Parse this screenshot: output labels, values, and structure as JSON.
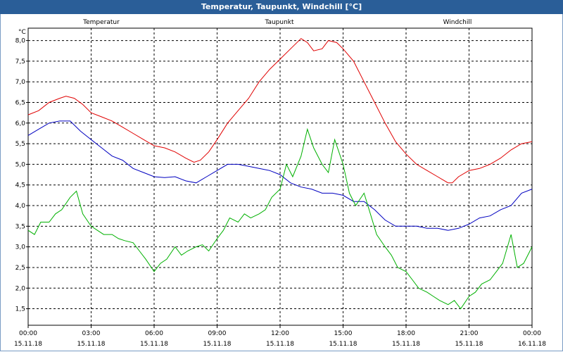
{
  "window": {
    "title": "Temperatur, Taupunkt, Windchill [°C]"
  },
  "chart_data": {
    "type": "line",
    "title": "Temperatur, Taupunkt, Windchill [°C]",
    "ylabel": "°C",
    "ylim": [
      1.1,
      8.3
    ],
    "yticks": [
      1.5,
      2.0,
      2.5,
      3.0,
      3.5,
      4.0,
      4.5,
      5.0,
      5.5,
      6.0,
      6.5,
      7.0,
      7.5,
      8.0
    ],
    "ytick_labels": [
      "1,5",
      "2,0",
      "2,5",
      "3,0",
      "3,5",
      "4,0",
      "4,5",
      "5,0",
      "5,5",
      "6,0",
      "6,5",
      "7,0",
      "7,5",
      "8,0"
    ],
    "xlim": [
      0,
      24
    ],
    "xticks": [
      0,
      3,
      6,
      9,
      12,
      15,
      18,
      21,
      24
    ],
    "xtick_time_labels": [
      "00:00",
      "03:00",
      "06:00",
      "09:00",
      "12:00",
      "15:00",
      "18:00",
      "21:00",
      "00:00"
    ],
    "xtick_date_labels": [
      "15.11.18",
      "15.11.18",
      "15.11.18",
      "15.11.18",
      "15.11.18",
      "15.11.18",
      "15.11.18",
      "15.11.18",
      "16.11.18"
    ],
    "grid": true,
    "legend": "top",
    "series": [
      {
        "name": "Temperatur",
        "color": "#e00000",
        "x": [
          0,
          0.5,
          1,
          1.5,
          1.8,
          2.2,
          2.6,
          3,
          3.5,
          4,
          4.5,
          5,
          5.5,
          6,
          6.5,
          7,
          7.5,
          7.9,
          8.2,
          8.6,
          9,
          9.5,
          10,
          10.5,
          11,
          11.5,
          12,
          12.5,
          13,
          13.3,
          13.6,
          14,
          14.3,
          14.7,
          15,
          15.5,
          16,
          16.5,
          17,
          17.5,
          18,
          18.5,
          19,
          19.5,
          20,
          20.2,
          20.5,
          21,
          21.5,
          22,
          22.5,
          23,
          23.5,
          24
        ],
        "y": [
          6.2,
          6.3,
          6.5,
          6.6,
          6.65,
          6.6,
          6.45,
          6.25,
          6.15,
          6.05,
          5.9,
          5.75,
          5.6,
          5.45,
          5.4,
          5.3,
          5.15,
          5.05,
          5.1,
          5.3,
          5.6,
          6.0,
          6.3,
          6.6,
          7.0,
          7.3,
          7.55,
          7.8,
          8.05,
          7.95,
          7.75,
          7.8,
          8.0,
          7.95,
          7.8,
          7.5,
          7.0,
          6.5,
          6.0,
          5.55,
          5.25,
          5.0,
          4.85,
          4.7,
          4.55,
          4.55,
          4.7,
          4.85,
          4.9,
          5.0,
          5.15,
          5.35,
          5.5,
          5.55
        ]
      },
      {
        "name": "Taupunkt",
        "color": "#0000c0",
        "x": [
          0,
          0.5,
          1,
          1.5,
          2,
          2.5,
          3,
          3.5,
          4,
          4.5,
          5,
          5.5,
          6,
          6.5,
          7,
          7.5,
          8,
          8.5,
          9,
          9.5,
          10,
          10.5,
          11,
          11.5,
          12,
          12.5,
          13,
          13.5,
          14,
          14.5,
          15,
          15.5,
          16,
          16.5,
          17,
          17.5,
          18,
          18.5,
          19,
          19.5,
          20,
          20.5,
          21,
          21.5,
          22,
          22.5,
          23,
          23.5,
          24
        ],
        "y": [
          5.7,
          5.85,
          6.0,
          6.05,
          6.05,
          5.8,
          5.6,
          5.4,
          5.2,
          5.1,
          4.9,
          4.8,
          4.7,
          4.68,
          4.7,
          4.6,
          4.55,
          4.7,
          4.85,
          5.0,
          5.0,
          4.95,
          4.9,
          4.85,
          4.75,
          4.55,
          4.45,
          4.4,
          4.3,
          4.3,
          4.25,
          4.1,
          4.1,
          3.9,
          3.65,
          3.5,
          3.5,
          3.5,
          3.45,
          3.45,
          3.4,
          3.45,
          3.55,
          3.7,
          3.75,
          3.9,
          4.0,
          4.3,
          4.4
        ]
      },
      {
        "name": "Windchill",
        "color": "#00b000",
        "x": [
          0,
          0.3,
          0.6,
          1,
          1.3,
          1.6,
          2,
          2.3,
          2.6,
          3,
          3.3,
          3.6,
          4,
          4.3,
          4.6,
          5,
          5.3,
          5.6,
          6,
          6.3,
          6.6,
          7,
          7.3,
          7.6,
          8,
          8.3,
          8.6,
          9,
          9.3,
          9.6,
          10,
          10.3,
          10.6,
          11,
          11.3,
          11.6,
          12,
          12.3,
          12.6,
          13,
          13.3,
          13.6,
          14,
          14.3,
          14.6,
          15,
          15.3,
          15.6,
          16,
          16.3,
          16.6,
          17,
          17.3,
          17.6,
          18,
          18.3,
          18.6,
          19,
          19.3,
          19.6,
          20,
          20.3,
          20.6,
          21,
          21.3,
          21.6,
          22,
          22.3,
          22.6,
          23,
          23.3,
          23.6,
          24
        ],
        "y": [
          3.4,
          3.3,
          3.6,
          3.6,
          3.8,
          3.9,
          4.2,
          4.35,
          3.8,
          3.5,
          3.4,
          3.3,
          3.3,
          3.2,
          3.15,
          3.1,
          2.9,
          2.7,
          2.4,
          2.6,
          2.7,
          3.0,
          2.8,
          2.9,
          3.0,
          3.05,
          2.9,
          3.2,
          3.4,
          3.7,
          3.6,
          3.8,
          3.7,
          3.8,
          3.9,
          4.2,
          4.4,
          5.0,
          4.7,
          5.2,
          5.85,
          5.4,
          5.0,
          4.8,
          5.6,
          5.0,
          4.3,
          4.0,
          4.3,
          3.8,
          3.3,
          3.0,
          2.8,
          2.5,
          2.4,
          2.2,
          2.0,
          1.9,
          1.8,
          1.7,
          1.6,
          1.7,
          1.5,
          1.8,
          1.9,
          2.1,
          2.2,
          2.4,
          2.6,
          3.3,
          2.5,
          2.6,
          3.0
        ]
      }
    ]
  }
}
